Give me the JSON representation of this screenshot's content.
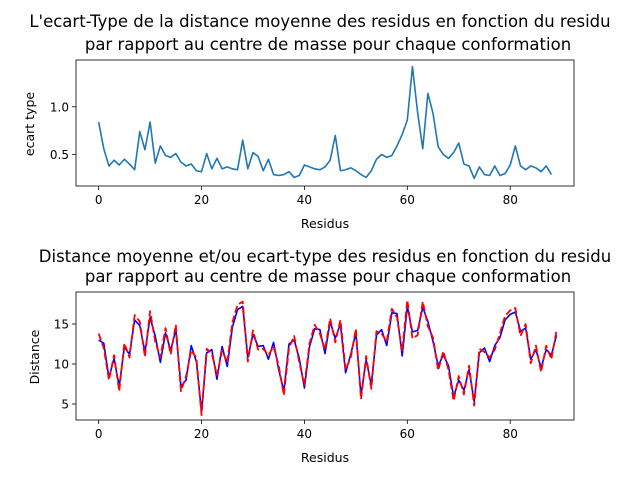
{
  "chart_data": [
    {
      "type": "line",
      "title_lines": [
        "L'ecart-Type de la distance moyenne des residus en fonction du residu",
        "par rapport au centre de masse pour chaque conformation"
      ],
      "xlabel": "Residus",
      "ylabel": "ecart type",
      "xlim": [
        -4.4,
        92.4
      ],
      "ylim": [
        0.17,
        1.49
      ],
      "xticks": [
        0,
        20,
        40,
        60,
        80
      ],
      "xtick_labels": [
        "0",
        "20",
        "40",
        "60",
        "80"
      ],
      "yticks": [
        0.5,
        1.0
      ],
      "ytick_labels": [
        "0.5",
        "1.0"
      ],
      "grid": false,
      "series": [
        {
          "color": "#1f77b4",
          "style": "solid",
          "x_start": 0,
          "values": [
            0.84,
            0.56,
            0.38,
            0.44,
            0.39,
            0.45,
            0.4,
            0.34,
            0.74,
            0.55,
            0.84,
            0.41,
            0.59,
            0.49,
            0.47,
            0.51,
            0.42,
            0.38,
            0.4,
            0.33,
            0.32,
            0.51,
            0.35,
            0.46,
            0.35,
            0.37,
            0.35,
            0.34,
            0.65,
            0.35,
            0.52,
            0.48,
            0.33,
            0.45,
            0.29,
            0.28,
            0.29,
            0.32,
            0.26,
            0.28,
            0.39,
            0.37,
            0.35,
            0.34,
            0.37,
            0.44,
            0.7,
            0.33,
            0.34,
            0.36,
            0.33,
            0.29,
            0.26,
            0.33,
            0.45,
            0.5,
            0.47,
            0.49,
            0.59,
            0.71,
            0.86,
            1.42,
            0.94,
            0.56,
            1.14,
            0.93,
            0.58,
            0.5,
            0.46,
            0.52,
            0.62,
            0.4,
            0.38,
            0.25,
            0.37,
            0.29,
            0.28,
            0.38,
            0.28,
            0.3,
            0.39,
            0.59,
            0.38,
            0.34,
            0.38,
            0.36,
            0.32,
            0.38,
            0.29
          ]
        }
      ]
    },
    {
      "type": "line",
      "title_lines": [
        "Distance moyenne et/ou ecart-type des residus en fonction du residu",
        "par rapport au centre de masse pour chaque conformation"
      ],
      "xlabel": "Residus",
      "ylabel": "Distance",
      "xlim": [
        -4.4,
        92.4
      ],
      "ylim": [
        3.0,
        19.0
      ],
      "xticks": [
        0,
        20,
        40,
        60,
        80
      ],
      "xtick_labels": [
        "0",
        "20",
        "40",
        "60",
        "80"
      ],
      "yticks": [
        5,
        10,
        15
      ],
      "ytick_labels": [
        "5",
        "10",
        "15"
      ],
      "grid": false,
      "series": [
        {
          "color": "#0000ff",
          "style": "solid",
          "x_start": 0,
          "values": [
            13.0,
            12.6,
            8.3,
            10.7,
            7.2,
            12.1,
            11.2,
            15.5,
            14.8,
            11.5,
            15.8,
            13.5,
            10.2,
            13.9,
            11.7,
            14.3,
            7.2,
            8.0,
            12.3,
            10.3,
            4.0,
            11.4,
            11.8,
            8.1,
            12.2,
            9.7,
            14.6,
            16.8,
            17.2,
            10.8,
            13.7,
            12.2,
            12.3,
            10.6,
            12.7,
            9.3,
            6.6,
            12.5,
            13.0,
            10.7,
            7.0,
            12.2,
            14.4,
            14.3,
            11.3,
            15.3,
            13.2,
            15.0,
            8.9,
            11.2,
            13.9,
            6.1,
            10.5,
            7.4,
            13.6,
            14.3,
            12.3,
            16.4,
            16.3,
            11.0,
            17.2,
            14.0,
            14.2,
            17.1,
            15.3,
            12.8,
            9.8,
            11.1,
            9.8,
            5.9,
            8.0,
            6.7,
            9.3,
            5.3,
            11.4,
            12.0,
            10.3,
            12.3,
            13.3,
            15.5,
            16.2,
            16.5,
            14.1,
            14.5,
            10.6,
            11.8,
            9.5,
            11.8,
            11.1,
            13.6
          ]
        },
        {
          "color": "#ff0000",
          "style": "dashed",
          "x_start": 0,
          "values": [
            13.8,
            12.0,
            8.0,
            11.1,
            6.6,
            12.6,
            10.8,
            16.1,
            15.3,
            10.9,
            16.6,
            12.8,
            10.8,
            14.5,
            11.2,
            14.9,
            6.6,
            8.5,
            11.7,
            10.8,
            3.6,
            11.9,
            11.3,
            8.6,
            11.7,
            10.2,
            15.2,
            17.4,
            17.8,
            10.3,
            14.2,
            11.8,
            11.9,
            11.1,
            12.2,
            9.8,
            6.1,
            12.0,
            13.5,
            10.2,
            7.4,
            12.6,
            14.9,
            13.8,
            11.8,
            15.7,
            12.7,
            15.5,
            9.3,
            10.8,
            14.4,
            5.6,
            11.0,
            6.9,
            14.1,
            13.8,
            12.8,
            16.9,
            15.8,
            11.6,
            18.0,
            13.2,
            13.6,
            17.8,
            14.7,
            13.3,
            9.2,
            11.6,
            9.3,
            5.4,
            8.5,
            6.2,
            9.8,
            4.8,
            11.9,
            11.5,
            10.8,
            11.8,
            13.8,
            16.0,
            16.7,
            17.0,
            13.5,
            15.0,
            10.1,
            12.3,
            9.0,
            12.3,
            10.6,
            14.2
          ]
        }
      ]
    }
  ]
}
